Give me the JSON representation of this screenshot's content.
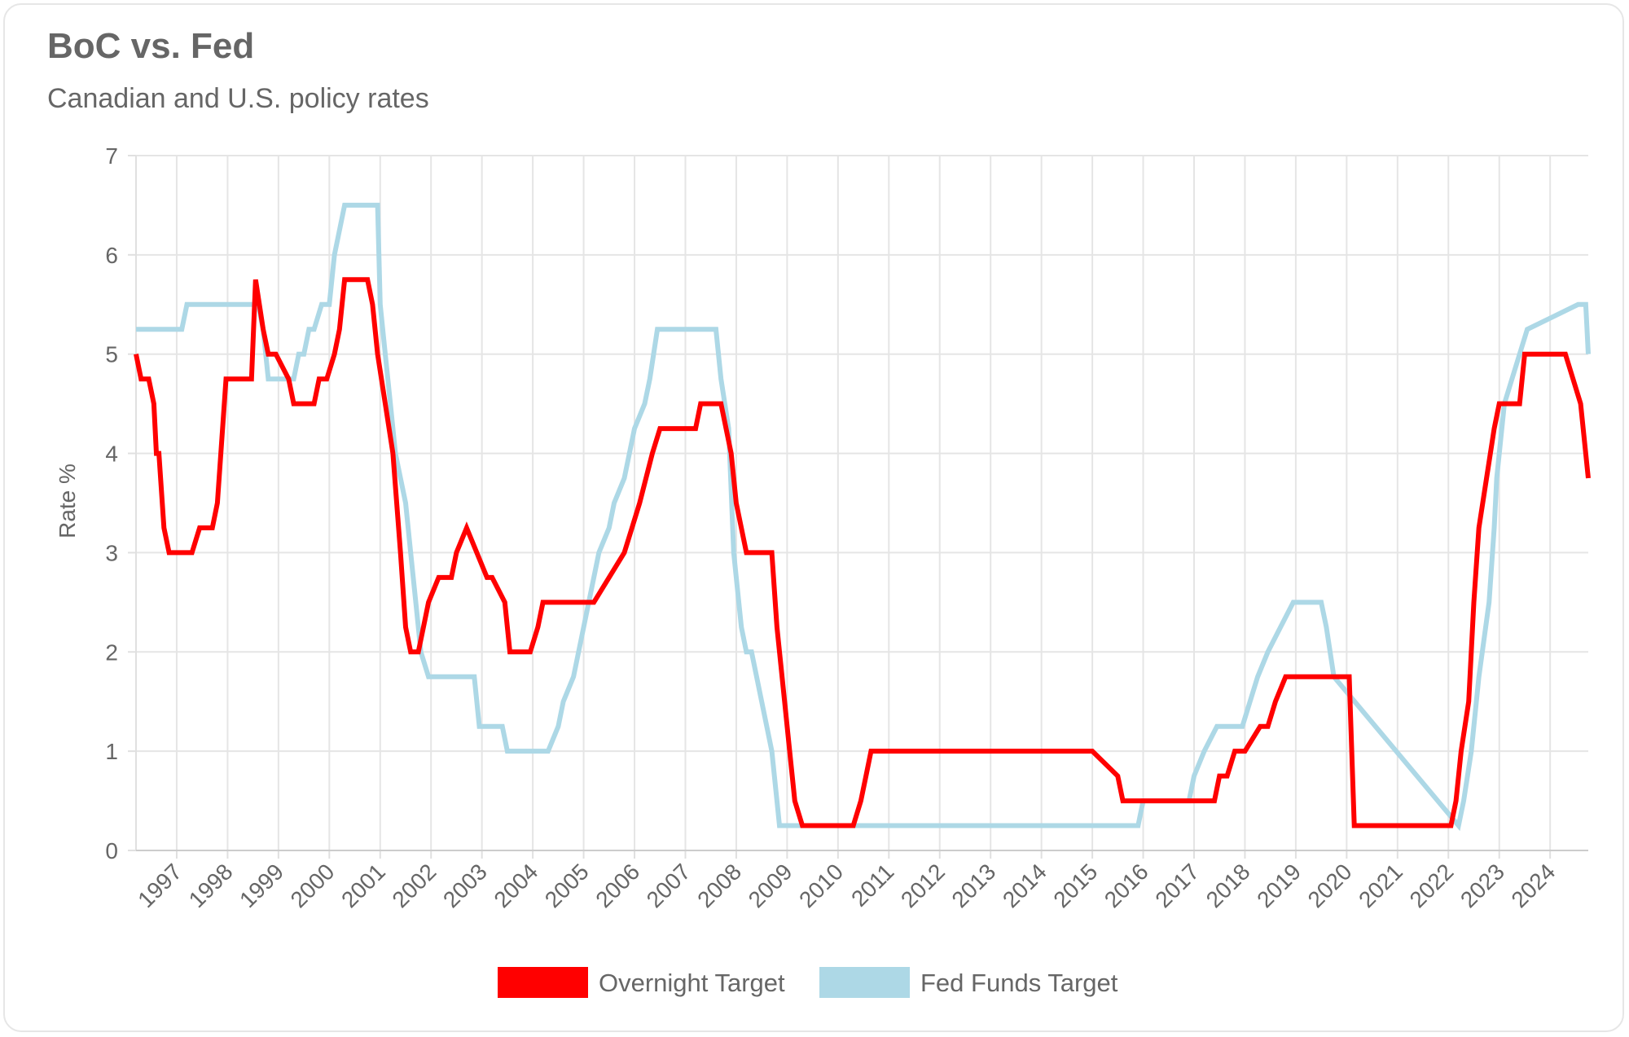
{
  "header": {
    "title": "BoC vs. Fed",
    "subtitle": "Canadian and U.S. policy rates"
  },
  "chart_data": {
    "type": "line",
    "title": "BoC vs. Fed",
    "subtitle": "Canadian and U.S. policy rates",
    "xlabel": "",
    "ylabel": "Rate %",
    "ylim": [
      0,
      7
    ],
    "xlim": [
      1996.2,
      2024.75
    ],
    "yticks": [
      "0",
      "1",
      "2",
      "3",
      "4",
      "5",
      "6",
      "7"
    ],
    "xticks": [
      "1997",
      "1998",
      "1999",
      "2000",
      "2001",
      "2002",
      "2003",
      "2004",
      "2005",
      "2006",
      "2007",
      "2008",
      "2009",
      "2010",
      "2011",
      "2012",
      "2013",
      "2014",
      "2015",
      "2016",
      "2017",
      "2018",
      "2019",
      "2020",
      "2021",
      "2022",
      "2023",
      "2024"
    ],
    "grid": true,
    "legend_position": "bottom",
    "series": [
      {
        "name": "Overnight Target",
        "color": "#ff0000",
        "x": [
          1996.2,
          1996.3,
          1996.45,
          1996.55,
          1996.6,
          1996.65,
          1996.75,
          1996.85,
          1997.0,
          1997.3,
          1997.45,
          1997.55,
          1997.7,
          1997.8,
          1997.97,
          1998.47,
          1998.55,
          1998.7,
          1998.8,
          1998.95,
          1999.2,
          1999.3,
          1999.7,
          1999.8,
          1999.95,
          2000.1,
          2000.2,
          2000.3,
          2000.75,
          2000.85,
          2000.95,
          2001.1,
          2001.25,
          2001.4,
          2001.5,
          2001.6,
          2001.75,
          2001.85,
          2001.95,
          2002.15,
          2002.2,
          2002.4,
          2002.5,
          2002.7,
          2003.1,
          2003.2,
          2003.45,
          2003.55,
          2003.7,
          2003.95,
          2004.1,
          2004.2,
          2004.6,
          2004.8,
          2005.2,
          2005.8,
          2005.95,
          2006.1,
          2006.35,
          2006.5,
          2007.2,
          2007.3,
          2007.7,
          2007.9,
          2008.0,
          2008.2,
          2008.7,
          2008.8,
          2008.95,
          2009.05,
          2009.15,
          2009.3,
          2010.3,
          2010.45,
          2010.55,
          2010.65,
          2015.0,
          2015.5,
          2015.6,
          2017.4,
          2017.5,
          2017.65,
          2017.8,
          2018.0,
          2018.3,
          2018.45,
          2018.6,
          2018.8,
          2020.05,
          2020.15,
          2022.05,
          2022.15,
          2022.25,
          2022.4,
          2022.5,
          2022.6,
          2022.75,
          2022.9,
          2023.0,
          2023.4,
          2023.5,
          2024.3,
          2024.45,
          2024.6,
          2024.75
        ],
        "y": [
          5.0,
          4.75,
          4.75,
          4.5,
          4.0,
          4.0,
          3.25,
          3.0,
          3.0,
          3.0,
          3.25,
          3.25,
          3.25,
          3.5,
          4.75,
          4.75,
          5.75,
          5.25,
          5.0,
          5.0,
          4.75,
          4.5,
          4.5,
          4.75,
          4.75,
          5.0,
          5.25,
          5.75,
          5.75,
          5.5,
          5.0,
          4.5,
          4.0,
          3.0,
          2.25,
          2.0,
          2.0,
          2.25,
          2.5,
          2.75,
          2.75,
          2.75,
          3.0,
          3.25,
          2.75,
          2.75,
          2.5,
          2.0,
          2.0,
          2.0,
          2.25,
          2.5,
          2.5,
          2.5,
          2.5,
          3.0,
          3.25,
          3.5,
          4.0,
          4.25,
          4.25,
          4.5,
          4.5,
          4.0,
          3.5,
          3.0,
          3.0,
          2.25,
          1.5,
          1.0,
          0.5,
          0.25,
          0.25,
          0.5,
          0.75,
          1.0,
          1.0,
          0.75,
          0.5,
          0.5,
          0.75,
          0.75,
          1.0,
          1.0,
          1.25,
          1.25,
          1.5,
          1.75,
          1.75,
          0.25,
          0.25,
          0.5,
          1.0,
          1.5,
          2.5,
          3.25,
          3.75,
          4.25,
          4.5,
          4.5,
          5.0,
          5.0,
          4.75,
          4.5,
          3.75
        ]
      },
      {
        "name": "Fed Funds Target",
        "color": "#add8e6",
        "x": [
          1996.2,
          1997.1,
          1997.2,
          1998.6,
          1998.7,
          1998.8,
          1998.9,
          1999.3,
          1999.4,
          1999.5,
          1999.6,
          1999.7,
          1999.85,
          2000.0,
          2000.1,
          2000.3,
          2000.5,
          2000.95,
          2001.0,
          2001.1,
          2001.2,
          2001.3,
          2001.4,
          2001.5,
          2001.6,
          2001.7,
          2001.8,
          2001.95,
          2002.85,
          2002.95,
          2003.4,
          2003.5,
          2004.3,
          2004.5,
          2004.6,
          2004.8,
          2005.0,
          2005.2,
          2005.3,
          2005.5,
          2005.6,
          2005.8,
          2006.0,
          2006.2,
          2006.3,
          2006.45,
          2007.6,
          2007.7,
          2007.85,
          2007.95,
          2008.1,
          2008.2,
          2008.3,
          2008.7,
          2008.8,
          2008.85,
          2008.95,
          2015.9,
          2016.0,
          2016.9,
          2017.0,
          2017.2,
          2017.45,
          2017.95,
          2018.1,
          2018.25,
          2018.45,
          2018.7,
          2018.95,
          2019.5,
          2019.6,
          2019.75,
          2022.2,
          2022.3,
          2022.45,
          2022.6,
          2022.8,
          2022.9,
          2022.95,
          2023.1,
          2023.25,
          2023.4,
          2023.55,
          2024.55,
          2024.7,
          2024.75
        ],
        "y": [
          5.25,
          5.25,
          5.5,
          5.5,
          5.25,
          4.75,
          4.75,
          4.75,
          5.0,
          5.0,
          5.25,
          5.25,
          5.5,
          5.5,
          6.0,
          6.5,
          6.5,
          6.5,
          5.5,
          5.0,
          4.5,
          4.0,
          3.75,
          3.5,
          3.0,
          2.5,
          2.0,
          1.75,
          1.75,
          1.25,
          1.25,
          1.0,
          1.0,
          1.25,
          1.5,
          1.75,
          2.25,
          2.75,
          3.0,
          3.25,
          3.5,
          3.75,
          4.25,
          4.5,
          4.75,
          5.25,
          5.25,
          4.75,
          4.25,
          3.0,
          2.25,
          2.0,
          2.0,
          1.0,
          0.5,
          0.25,
          0.25,
          0.25,
          0.5,
          0.5,
          0.75,
          1.0,
          1.25,
          1.25,
          1.5,
          1.75,
          2.0,
          2.25,
          2.5,
          2.5,
          2.25,
          1.75,
          0.25,
          0.5,
          1.0,
          1.75,
          2.5,
          3.25,
          3.75,
          4.5,
          4.75,
          5.0,
          5.25,
          5.5,
          5.5,
          5.0
        ]
      }
    ]
  }
}
